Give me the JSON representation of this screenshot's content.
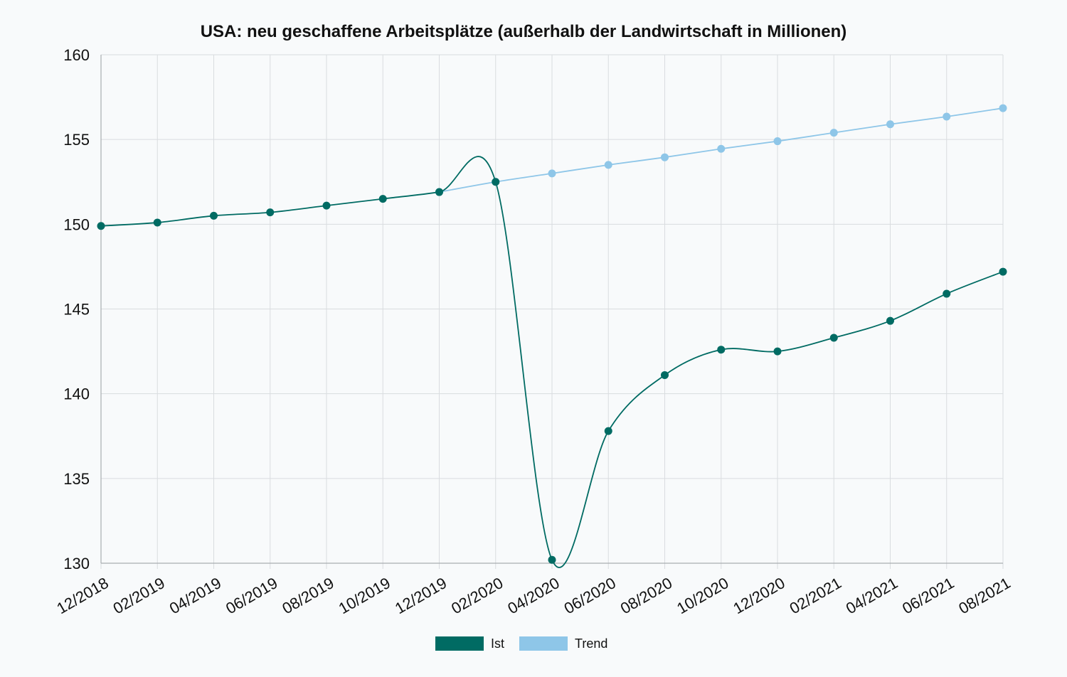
{
  "chart_data": {
    "type": "line",
    "title": "USA: neu geschaffene Arbeitsplätze (außerhalb der Landwirtschaft in Millionen)",
    "xlabel": "",
    "ylabel": "",
    "ylim": [
      130,
      160
    ],
    "yticks": [
      "130",
      "135",
      "140",
      "145",
      "150",
      "155",
      "160"
    ],
    "categories": [
      "12/2018",
      "02/2019",
      "04/2019",
      "06/2019",
      "08/2019",
      "10/2019",
      "12/2019",
      "02/2020",
      "04/2020",
      "06/2020",
      "08/2020",
      "10/2020",
      "12/2020",
      "02/2021",
      "04/2021",
      "06/2021",
      "08/2021"
    ],
    "grid": true,
    "legend_position": "bottom-center",
    "series": [
      {
        "name": "Ist",
        "color": "#006b63",
        "values": [
          149.9,
          150.1,
          150.5,
          150.7,
          151.1,
          151.5,
          151.9,
          152.5,
          130.2,
          137.8,
          141.1,
          142.6,
          142.5,
          143.3,
          144.3,
          145.9,
          147.2
        ]
      },
      {
        "name": "Trend",
        "color": "#8ec6e8",
        "values": [
          null,
          null,
          null,
          null,
          null,
          null,
          151.9,
          152.5,
          153.0,
          153.5,
          153.95,
          154.45,
          154.9,
          155.4,
          155.9,
          156.35,
          156.85
        ]
      }
    ]
  }
}
